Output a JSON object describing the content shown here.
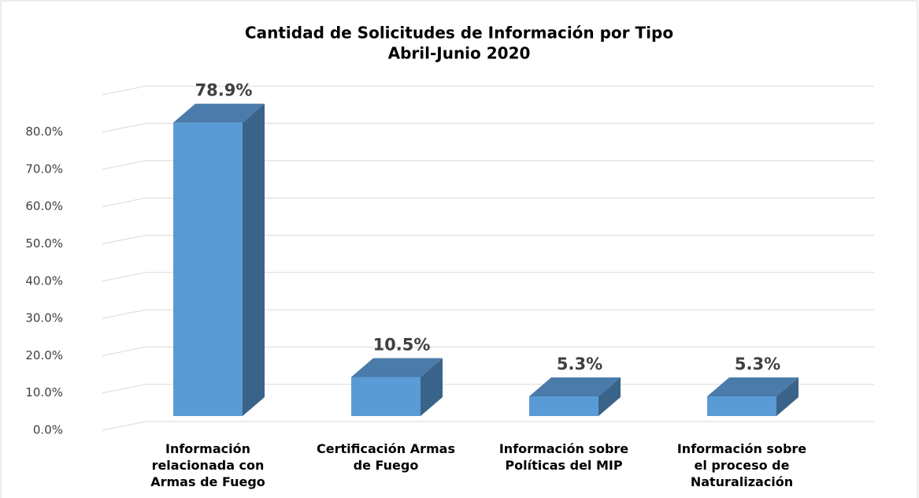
{
  "chart_data": {
    "type": "bar3d",
    "title": "Cantidad de Solicitudes de Información por Tipo",
    "subtitle": "Abril-Junio 2020",
    "categories": [
      "Información relacionada con Armas de Fuego",
      "Certificación Armas de Fuego",
      "Información sobre Políticas del MIP",
      "Información sobre el proceso de Naturalización"
    ],
    "values": [
      78.9,
      10.5,
      5.3,
      5.3
    ],
    "value_labels": [
      "78.9%",
      "10.5%",
      "5.3%",
      "5.3%"
    ],
    "color": "#5b9bd5",
    "ylim": [
      0,
      90
    ],
    "yticks": [
      {
        "value": 0,
        "label": "0.0%"
      },
      {
        "value": 10,
        "label": "10.0%"
      },
      {
        "value": 20,
        "label": "20.0%"
      },
      {
        "value": 30,
        "label": "30.0%"
      },
      {
        "value": 40,
        "label": "40.0%"
      },
      {
        "value": 50,
        "label": "50.0%"
      },
      {
        "value": 60,
        "label": "60.0%"
      },
      {
        "value": 70,
        "label": "70.0%"
      },
      {
        "value": 80,
        "label": "80.0%"
      }
    ],
    "grid": true
  }
}
